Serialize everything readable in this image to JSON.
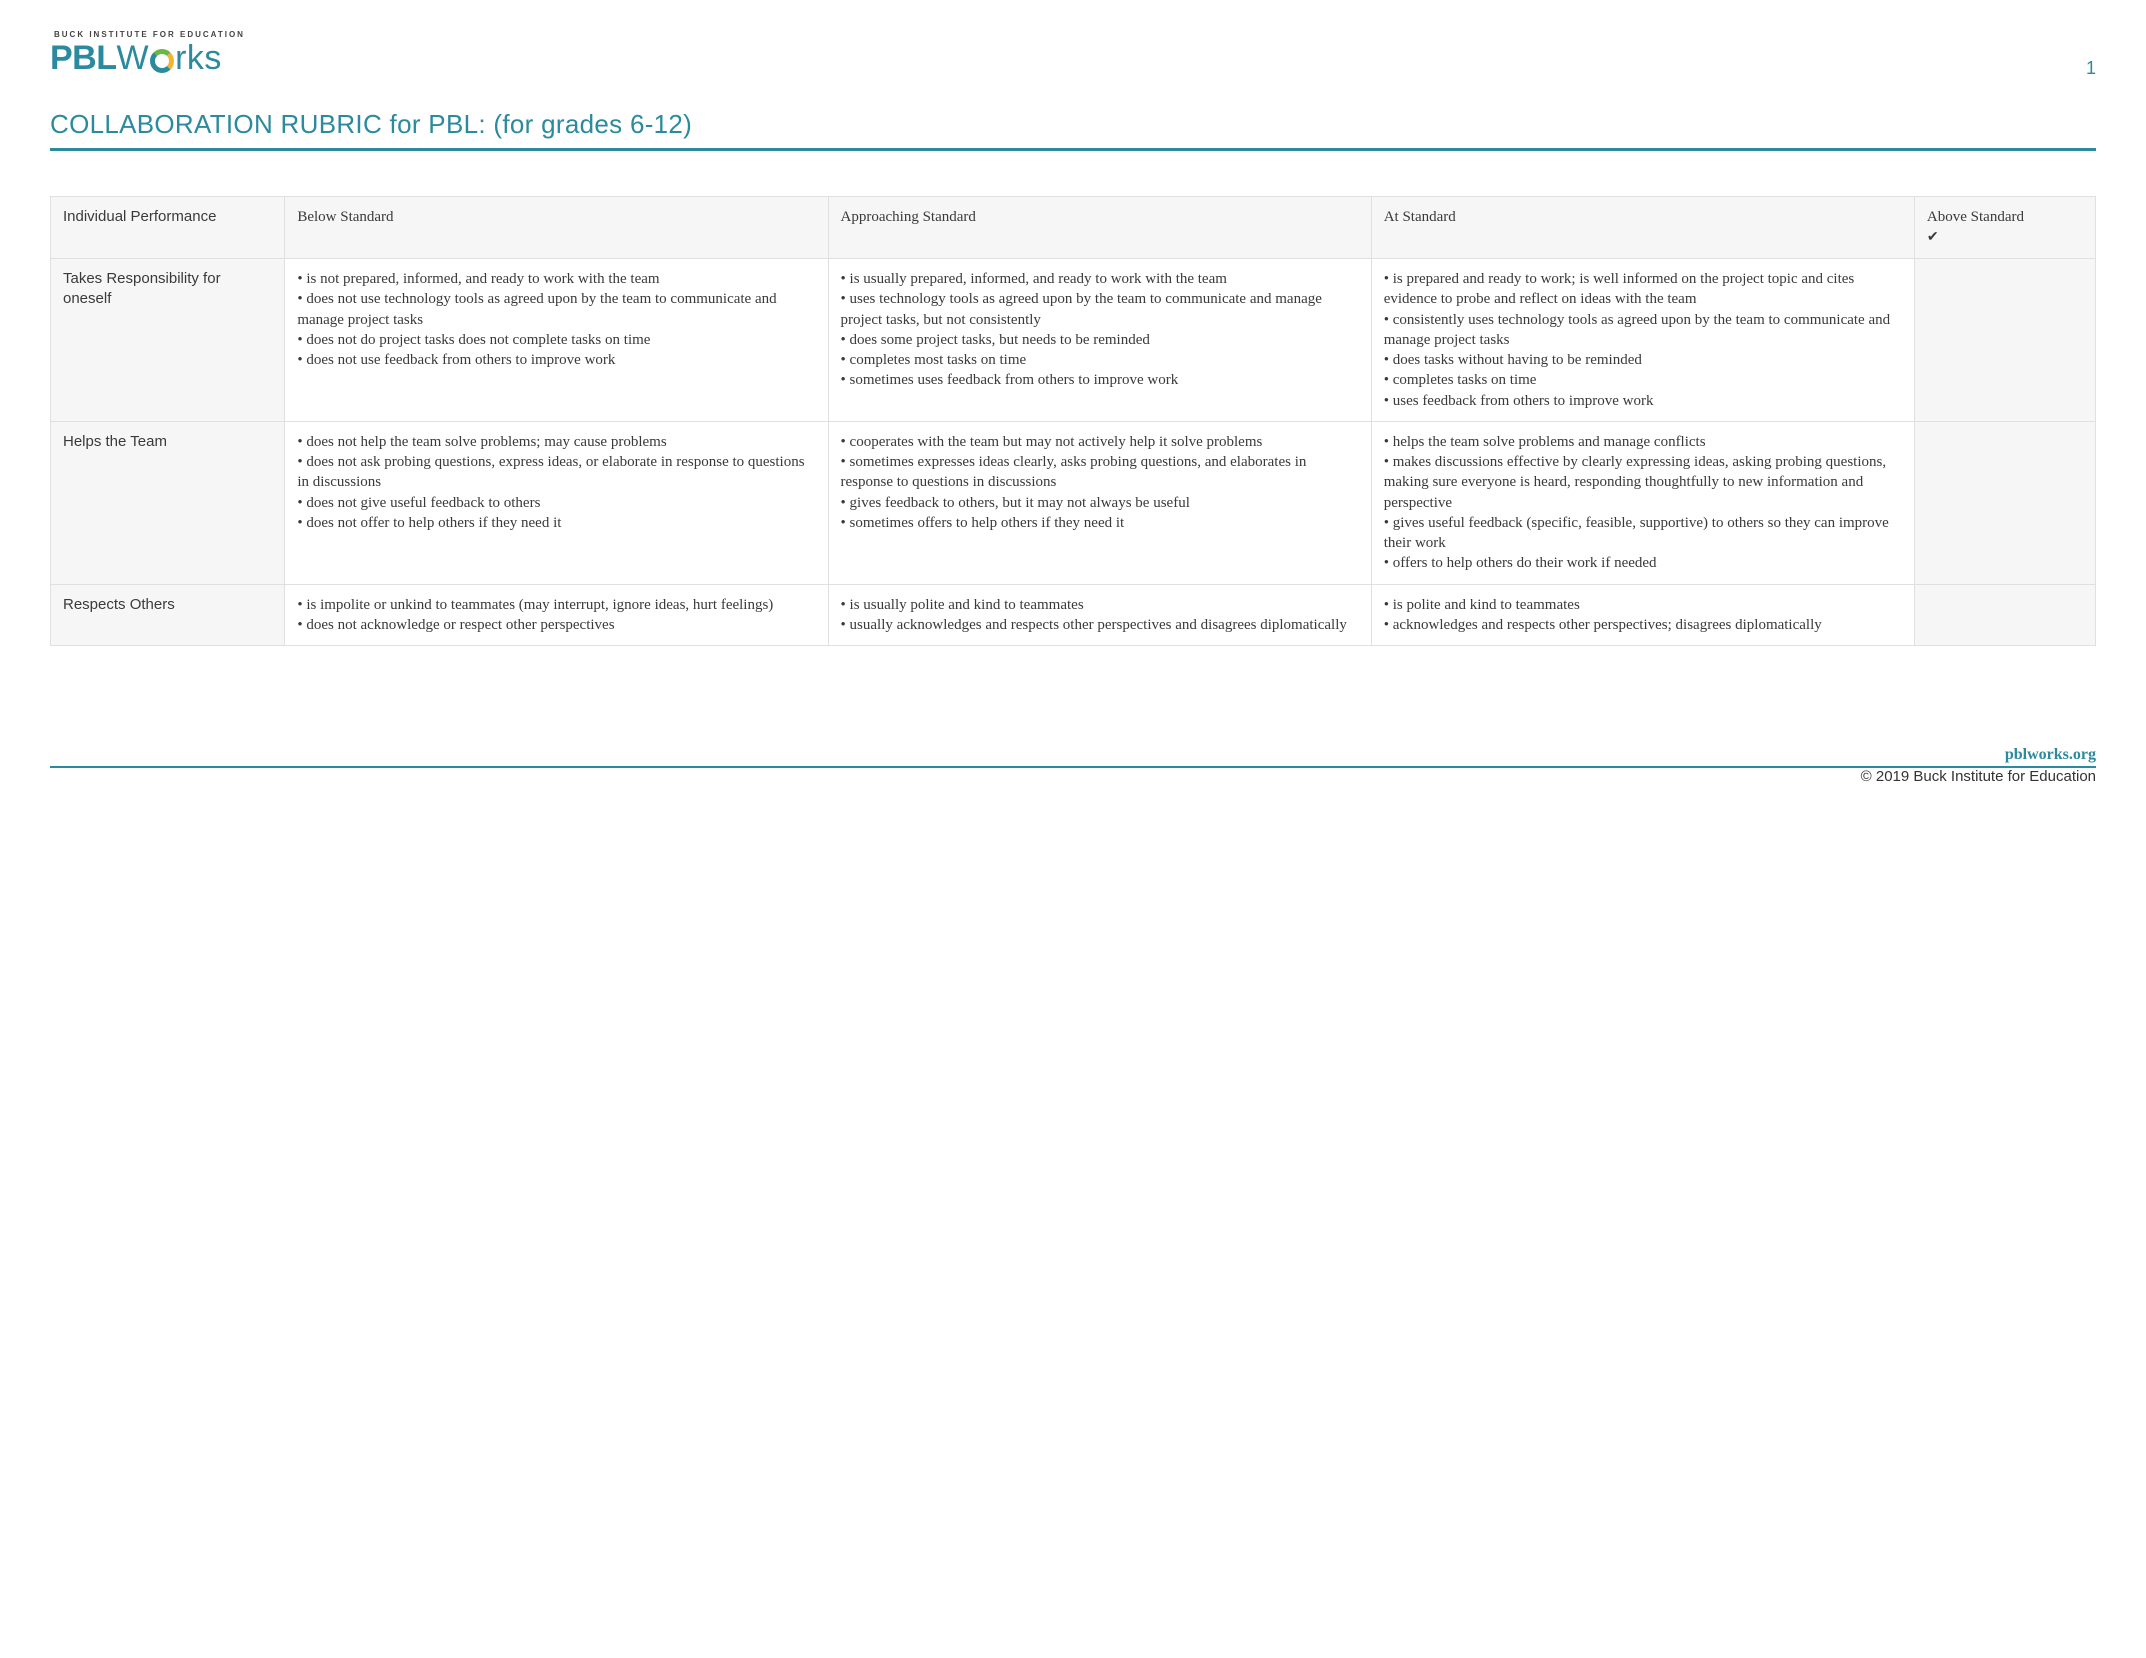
{
  "colors": {
    "accent": "#2c8a9e",
    "text": "#3a3a3a",
    "border": "#e0e0e0",
    "header_bg": "#f6f6f6",
    "logo_green": "#6bb745",
    "logo_yellow": "#f5b335"
  },
  "header": {
    "tagline": "BUCK INSTITUTE FOR EDUCATION",
    "logo_pbl": "PBL",
    "logo_w": "W",
    "logo_rks": "rks",
    "page_number": "1"
  },
  "title": "COLLABORATION RUBRIC for PBL: (for grades 6-12)",
  "table": {
    "category_header": "Individual Performance",
    "levels": [
      "Below Standard",
      "Approaching Standard",
      "At Standard"
    ],
    "above_label": "Above Standard",
    "above_check": "✔",
    "rows": [
      {
        "name": "Takes Responsibility for oneself",
        "below": [
          "is not prepared, informed, and ready to work with the team",
          "does not use technology tools as agreed upon by the team to communicate and manage project tasks",
          "does not do project tasks does not complete tasks on time",
          "does not use feedback from others to improve work"
        ],
        "approaching": [
          "is usually prepared, informed, and ready to work with the team",
          "uses technology tools as agreed upon by the team to communicate and manage project tasks, but not consistently",
          "does some project tasks, but needs to be reminded",
          "completes most tasks on time",
          "sometimes uses feedback from others to improve work"
        ],
        "at": [
          "is prepared and ready to work; is well informed on the project topic and cites evidence to probe and reflect on ideas with the team",
          "consistently uses technology tools as agreed upon by the team to communicate and manage project tasks",
          "does tasks without having to be reminded",
          "completes tasks on time",
          "uses feedback from others to improve work"
        ]
      },
      {
        "name": "Helps the Team",
        "below": [
          "does not help the team solve problems; may cause problems",
          "does not ask probing questions, express ideas, or elaborate in response to questions in discussions",
          "does not give useful feedback to others",
          "does not offer to help others if they need it"
        ],
        "approaching": [
          "cooperates with the team but may not actively help it solve problems",
          "sometimes expresses ideas clearly, asks probing questions, and elaborates in response to questions in discussions",
          "gives feedback to others, but it may not always be useful",
          "sometimes offers to help others if they need it"
        ],
        "at": [
          "helps the team solve problems and manage conflicts",
          "makes discussions effective by clearly expressing ideas, asking probing questions, making sure everyone is heard, responding thoughtfully to new information and perspective",
          "gives useful feedback (specific, feasible, supportive) to others so they can improve their work",
          "offers to help others do their work if needed"
        ]
      },
      {
        "name": "Respects Others",
        "below": [
          "is impolite or unkind to teammates (may interrupt, ignore ideas, hurt feelings)",
          "does not acknowledge or respect other perspectives"
        ],
        "approaching": [
          "is usually polite and kind to teammates",
          "usually acknowledges and respects other perspectives and disagrees diplomatically"
        ],
        "at": [
          "is polite and kind to teammates",
          "acknowledges and respects other perspectives; disagrees diplomatically"
        ]
      }
    ]
  },
  "footer": {
    "url": "pblworks.org",
    "copyright": "© 2019 Buck Institute for Education"
  }
}
